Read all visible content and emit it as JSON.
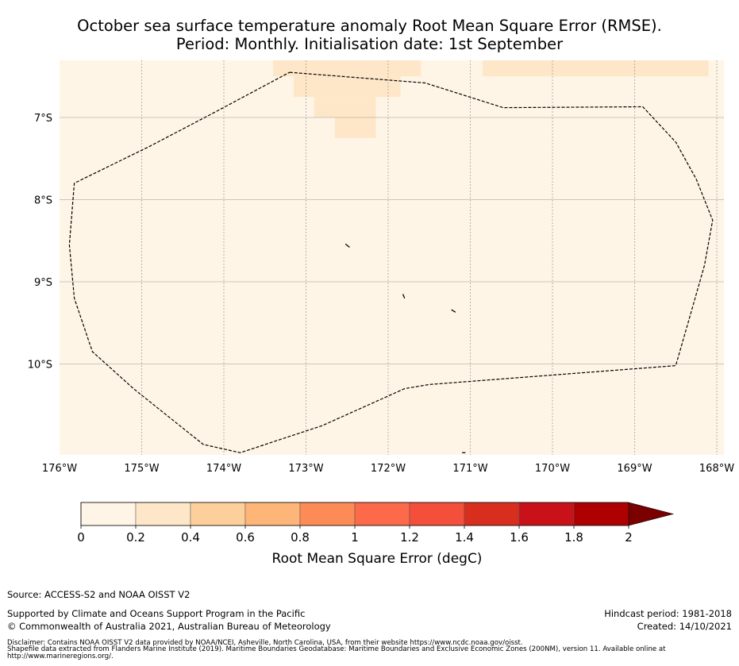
{
  "title": {
    "line1": "October sea surface temperature anomaly Root Mean Square Error (RMSE).",
    "line2": "Period: Monthly. Initialisation date: 1st September"
  },
  "map": {
    "lon_range": [
      -176,
      -168
    ],
    "lat_range": [
      -11.1,
      -6.3
    ],
    "x_ticks": [
      {
        "value": -176,
        "label": "176°W"
      },
      {
        "value": -175,
        "label": "175°W"
      },
      {
        "value": -174,
        "label": "174°W"
      },
      {
        "value": -173,
        "label": "173°W"
      },
      {
        "value": -172,
        "label": "172°W"
      },
      {
        "value": -171,
        "label": "171°W"
      },
      {
        "value": -170,
        "label": "170°W"
      },
      {
        "value": -169,
        "label": "169°W"
      },
      {
        "value": -168,
        "label": "168°W"
      }
    ],
    "y_ticks": [
      {
        "value": -7,
        "label": "7°S"
      },
      {
        "value": -8,
        "label": "8°S"
      },
      {
        "value": -9,
        "label": "9°S"
      },
      {
        "value": -10,
        "label": "10°S"
      }
    ],
    "background_rmse_bin": "0-0.2",
    "elevated_cells": [
      {
        "lon": [
          -173.4,
          -171.6
        ],
        "lat": [
          -6.3,
          -6.5
        ],
        "bin": "0.2-0.4"
      },
      {
        "lon": [
          -173.15,
          -171.85
        ],
        "lat": [
          -6.5,
          -6.75
        ],
        "bin": "0.2-0.4"
      },
      {
        "lon": [
          -172.9,
          -172.15
        ],
        "lat": [
          -6.75,
          -7.0
        ],
        "bin": "0.2-0.4"
      },
      {
        "lon": [
          -172.65,
          -172.15
        ],
        "lat": [
          -7.0,
          -7.25
        ],
        "bin": "0.2-0.4"
      },
      {
        "lon": [
          -170.85,
          -168.1
        ],
        "lat": [
          -6.3,
          -6.5
        ],
        "bin": "0.2-0.4"
      }
    ],
    "eez_boundary": [
      [
        -173.2,
        -6.45
      ],
      [
        -171.55,
        -6.58
      ],
      [
        -170.6,
        -6.88
      ],
      [
        -168.9,
        -6.87
      ],
      [
        -168.5,
        -7.3
      ],
      [
        -168.25,
        -7.75
      ],
      [
        -168.05,
        -8.25
      ],
      [
        -168.15,
        -8.8
      ],
      [
        -168.35,
        -9.5
      ],
      [
        -168.5,
        -10.02
      ],
      [
        -169.8,
        -10.12
      ],
      [
        -171.5,
        -10.25
      ],
      [
        -171.8,
        -10.3
      ],
      [
        -172.8,
        -10.75
      ],
      [
        -173.8,
        -11.08
      ],
      [
        -174.25,
        -10.98
      ],
      [
        -175.1,
        -10.3
      ],
      [
        -175.6,
        -9.85
      ],
      [
        -175.82,
        -9.2
      ],
      [
        -175.88,
        -8.55
      ],
      [
        -175.82,
        -7.8
      ],
      [
        -174.9,
        -7.35
      ],
      [
        -174.1,
        -6.93
      ],
      [
        -173.2,
        -6.45
      ]
    ],
    "islands": [
      [
        [
          -172.52,
          -8.54
        ],
        [
          -172.47,
          -8.58
        ]
      ],
      [
        [
          -171.82,
          -9.15
        ],
        [
          -171.8,
          -9.2
        ]
      ],
      [
        [
          -171.23,
          -9.34
        ],
        [
          -171.18,
          -9.37
        ]
      ],
      [
        [
          -171.1,
          -11.08
        ],
        [
          -171.06,
          -11.08
        ]
      ]
    ]
  },
  "colorbar": {
    "label": "Root Mean Square Error (degC)",
    "bins": [
      {
        "label": "0",
        "color": "#fff5e6"
      },
      {
        "label": "0.2",
        "color": "#fee7c8"
      },
      {
        "label": "0.4",
        "color": "#fdd09b"
      },
      {
        "label": "0.6",
        "color": "#fdb578"
      },
      {
        "label": "0.8",
        "color": "#fc8b56"
      },
      {
        "label": "1",
        "color": "#fc6a4a"
      },
      {
        "label": "1.2",
        "color": "#f44f3a"
      },
      {
        "label": "1.4",
        "color": "#d82e1e"
      },
      {
        "label": "1.6",
        "color": "#c9111a"
      },
      {
        "label": "1.8",
        "color": "#ae0000"
      }
    ],
    "end_label": "2",
    "extend_color": "#7b0000"
  },
  "colors": {
    "grid": "#8c8c8c",
    "boundary": "#000000"
  },
  "footer": {
    "source": "Source: ACCESS-S2 and NOAA OISST V2",
    "supported": "Supported by Climate and Oceans Support Program in the Pacific",
    "copyright": "© Commonwealth of Australia 2021, Australian Bureau of Meteorology",
    "hindcast": "Hindcast period: 1981-2018",
    "created": "Created: 14/10/2021",
    "disclaimer1": "Disclaimer: Contains NOAA OISST V2 data provided by NOAA/NCEI, Asheville, North Carolina, USA, from their website https://www.ncdc.noaa.gov/oisst.",
    "disclaimer2": "Shapefile data extracted from Flanders Marine Institute (2019). Maritime Boundaries Geodatabase: Maritime Boundaries and Exclusive Economic Zones (200NM), version 11. Available online at",
    "disclaimer3": "http://www.marineregions.org/."
  }
}
